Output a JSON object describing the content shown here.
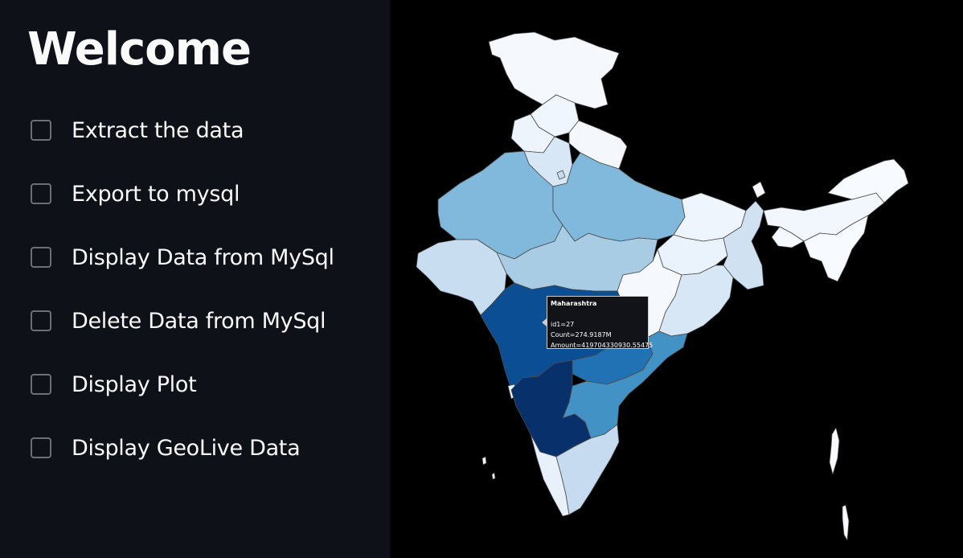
{
  "sidebar": {
    "title": "Welcome",
    "options": [
      {
        "label": "Extract the data",
        "checked": false
      },
      {
        "label": "Export to mysql",
        "checked": false
      },
      {
        "label": "Display Data from MySql",
        "checked": false
      },
      {
        "label": "Delete Data from MySql",
        "checked": false
      },
      {
        "label": "Display Plot",
        "checked": false
      },
      {
        "label": "Display GeoLive Data",
        "checked": false
      }
    ]
  },
  "map": {
    "type": "choropleth",
    "colorscale": "Blues",
    "background": "#000000",
    "hover": {
      "state": "Maharashtra",
      "id_line": "id1=27",
      "count_line": "Count=274.9187M",
      "amount_line": "Amount=419704330930.55475"
    }
  },
  "colors": {
    "sidebar_bg": "#0e1117",
    "text": "#fafafa",
    "checkbox_border": "#6b6f78"
  }
}
